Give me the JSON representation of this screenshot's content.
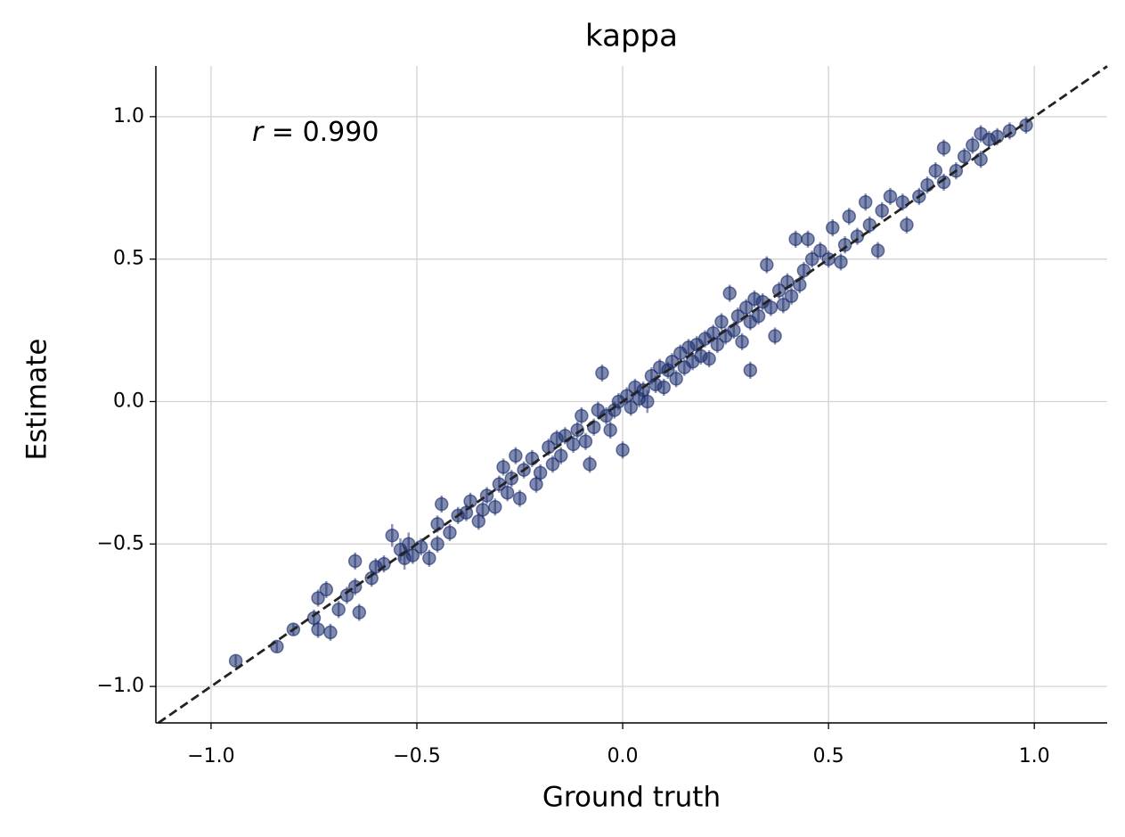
{
  "chart_data": {
    "type": "scatter",
    "title": "kappa",
    "x_label": "Ground truth",
    "y_label": "Estimate",
    "annotation": {
      "symbol": "r",
      "text": "= 0.990"
    },
    "xlim": [
      -1.134,
      1.177
    ],
    "ylim": [
      -1.128,
      1.178
    ],
    "xticks": [
      {
        "value": -1,
        "label": "−1.0"
      },
      {
        "value": -0.5,
        "label": "−0.5"
      },
      {
        "value": 0,
        "label": "0.0"
      },
      0.5,
      {
        "value": 1,
        "label": "1.0"
      }
    ],
    "yticks": [
      {
        "value": -1,
        "label": "−1.0"
      },
      {
        "value": -0.5,
        "label": "−0.5"
      },
      {
        "value": 0,
        "label": "0.0"
      },
      0.5,
      {
        "value": 1,
        "label": "1.0"
      }
    ],
    "grid": true,
    "identity_line": true,
    "series": [
      {
        "color": "#172a6b",
        "x": [
          -0.94,
          -0.84,
          -0.8,
          -0.75,
          -0.74,
          -0.72,
          -0.74,
          -0.71,
          -0.69,
          -0.67,
          -0.65,
          -0.64,
          -0.65,
          -0.61,
          -0.6,
          -0.58,
          -0.56,
          -0.54,
          -0.53,
          -0.52,
          -0.51,
          -0.49,
          -0.47,
          -0.45,
          -0.45,
          -0.44,
          -0.42,
          -0.4,
          -0.38,
          -0.37,
          -0.35,
          -0.34,
          -0.33,
          -0.31,
          -0.3,
          -0.29,
          -0.28,
          -0.27,
          -0.26,
          -0.25,
          -0.24,
          -0.22,
          -0.21,
          -0.2,
          -0.18,
          -0.17,
          -0.16,
          -0.15,
          -0.14,
          -0.12,
          -0.11,
          -0.1,
          -0.09,
          -0.08,
          -0.07,
          -0.06,
          -0.05,
          -0.04,
          -0.03,
          -0.02,
          -0.01,
          0.0,
          0.01,
          0.02,
          0.03,
          0.04,
          0.05,
          0.06,
          0.07,
          0.08,
          0.09,
          0.1,
          0.11,
          0.12,
          0.13,
          0.14,
          0.15,
          0.16,
          0.17,
          0.18,
          0.19,
          0.2,
          0.21,
          0.22,
          0.23,
          0.24,
          0.25,
          0.26,
          0.27,
          0.28,
          0.29,
          0.3,
          0.31,
          0.31,
          0.32,
          0.33,
          0.34,
          0.35,
          0.36,
          0.37,
          0.38,
          0.39,
          0.4,
          0.41,
          0.42,
          0.43,
          0.44,
          0.45,
          0.46,
          0.48,
          0.5,
          0.51,
          0.53,
          0.54,
          0.55,
          0.57,
          0.59,
          0.6,
          0.62,
          0.63,
          0.65,
          0.68,
          0.69,
          0.72,
          0.74,
          0.76,
          0.78,
          0.78,
          0.81,
          0.83,
          0.85,
          0.87,
          0.87,
          0.89,
          0.91,
          0.94,
          0.98
        ],
        "values": [
          -0.91,
          -0.86,
          -0.8,
          -0.76,
          -0.69,
          -0.66,
          -0.8,
          -0.81,
          -0.73,
          -0.68,
          -0.65,
          -0.74,
          -0.56,
          -0.62,
          -0.58,
          -0.57,
          -0.47,
          -0.52,
          -0.55,
          -0.5,
          -0.54,
          -0.51,
          -0.55,
          -0.43,
          -0.5,
          -0.36,
          -0.46,
          -0.4,
          -0.39,
          -0.35,
          -0.42,
          -0.38,
          -0.33,
          -0.37,
          -0.29,
          -0.23,
          -0.32,
          -0.27,
          -0.19,
          -0.34,
          -0.24,
          -0.2,
          -0.29,
          -0.25,
          -0.16,
          -0.22,
          -0.13,
          -0.19,
          -0.12,
          -0.15,
          -0.1,
          -0.05,
          -0.14,
          -0.22,
          -0.09,
          -0.03,
          0.1,
          -0.05,
          -0.1,
          -0.03,
          0.0,
          -0.17,
          0.02,
          -0.02,
          0.05,
          0.01,
          0.04,
          0.0,
          0.09,
          0.06,
          0.12,
          0.05,
          0.11,
          0.14,
          0.08,
          0.17,
          0.12,
          0.19,
          0.14,
          0.2,
          0.16,
          0.22,
          0.15,
          0.24,
          0.2,
          0.28,
          0.23,
          0.38,
          0.25,
          0.3,
          0.21,
          0.33,
          0.28,
          0.11,
          0.36,
          0.3,
          0.35,
          0.48,
          0.33,
          0.23,
          0.39,
          0.34,
          0.42,
          0.37,
          0.57,
          0.41,
          0.46,
          0.57,
          0.5,
          0.53,
          0.5,
          0.61,
          0.49,
          0.55,
          0.65,
          0.58,
          0.7,
          0.62,
          0.53,
          0.67,
          0.72,
          0.7,
          0.62,
          0.72,
          0.76,
          0.81,
          0.77,
          0.89,
          0.81,
          0.86,
          0.9,
          0.85,
          0.94,
          0.92,
          0.93,
          0.95,
          0.97
        ],
        "errors": [
          0.02,
          0.02,
          0.02,
          0.03,
          0.03,
          0.03,
          0.03,
          0.03,
          0.03,
          0.03,
          0.03,
          0.03,
          0.03,
          0.03,
          0.03,
          0.03,
          0.04,
          0.04,
          0.04,
          0.04,
          0.03,
          0.03,
          0.03,
          0.03,
          0.03,
          0.03,
          0.03,
          0.03,
          0.03,
          0.03,
          0.03,
          0.03,
          0.03,
          0.03,
          0.03,
          0.03,
          0.03,
          0.03,
          0.03,
          0.03,
          0.03,
          0.03,
          0.03,
          0.03,
          0.03,
          0.03,
          0.03,
          0.03,
          0.03,
          0.03,
          0.03,
          0.03,
          0.03,
          0.03,
          0.03,
          0.03,
          0.03,
          0.03,
          0.03,
          0.03,
          0.03,
          0.03,
          0.03,
          0.03,
          0.03,
          0.03,
          0.03,
          0.04,
          0.03,
          0.03,
          0.03,
          0.03,
          0.03,
          0.03,
          0.03,
          0.03,
          0.03,
          0.03,
          0.03,
          0.03,
          0.03,
          0.03,
          0.03,
          0.03,
          0.03,
          0.03,
          0.03,
          0.03,
          0.03,
          0.03,
          0.03,
          0.03,
          0.03,
          0.03,
          0.03,
          0.03,
          0.03,
          0.03,
          0.03,
          0.03,
          0.03,
          0.03,
          0.03,
          0.03,
          0.03,
          0.03,
          0.03,
          0.03,
          0.03,
          0.03,
          0.03,
          0.03,
          0.03,
          0.03,
          0.03,
          0.03,
          0.03,
          0.03,
          0.03,
          0.03,
          0.03,
          0.03,
          0.03,
          0.03,
          0.03,
          0.03,
          0.03,
          0.03,
          0.03,
          0.03,
          0.03,
          0.03,
          0.03,
          0.03,
          0.03,
          0.03,
          0.03
        ]
      }
    ]
  }
}
